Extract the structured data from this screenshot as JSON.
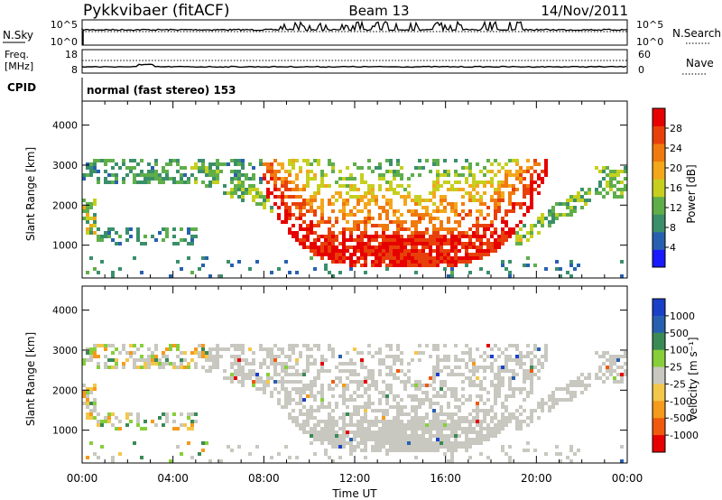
{
  "header": {
    "title": "Pykkvibaer (fitACF)",
    "beam": "Beam 13",
    "date": "14/Nov/2011"
  },
  "status_panels": {
    "nsky": {
      "label": "N.Sky",
      "left_ticks": [
        "10^5",
        "10^0"
      ],
      "right_ticks": [
        "10^5",
        "10^0"
      ],
      "right_label": "N.Search"
    },
    "freq": {
      "label_line1": "Freq.",
      "label_line2": "[MHz]",
      "left_ticks": [
        "18",
        "8"
      ],
      "right_ticks": [
        "60",
        "0"
      ],
      "right_label": "Nave"
    },
    "cpid": {
      "label": "CPID",
      "text": "normal (fast stereo) 153"
    }
  },
  "colors": {
    "power_scale": [
      "#1a1aff",
      "#2860b0",
      "#3a8f6a",
      "#5fae4a",
      "#c6cf1e",
      "#f3a71b",
      "#f07a0e",
      "#e8400a",
      "#e60000"
    ],
    "velocity_scale": [
      "#e60000",
      "#ef5a0e",
      "#f59a1b",
      "#f3c74a",
      "#c8c8c0",
      "#86cf3a",
      "#3a8a55",
      "#2860b0",
      "#1a40c8"
    ]
  },
  "chart_data": [
    {
      "type": "heatmap",
      "name": "power-panel",
      "xlabel": "",
      "ylabel": "Slant Range [km]",
      "x_ticks": [
        "00:00",
        "04:00",
        "08:00",
        "12:00",
        "16:00",
        "20:00",
        "00:00"
      ],
      "y_ticks": [
        "1000",
        "2000",
        "3000",
        "4000"
      ],
      "ylim": [
        180,
        4600
      ],
      "colorbar": {
        "label": "Power [dB]",
        "ticks": [
          "4",
          "8",
          "12",
          "16",
          "20",
          "24",
          "28"
        ],
        "range": [
          0,
          32
        ]
      }
    },
    {
      "type": "heatmap",
      "name": "velocity-panel",
      "xlabel": "Time UT",
      "ylabel": "Slant Range [km]",
      "x_ticks": [
        "00:00",
        "04:00",
        "08:00",
        "12:00",
        "16:00",
        "20:00",
        "00:00"
      ],
      "y_ticks": [
        "1000",
        "2000",
        "3000",
        "4000"
      ],
      "ylim": [
        180,
        4600
      ],
      "colorbar": {
        "label": "Velocity [m s⁻¹]",
        "ticks": [
          "1000",
          "500",
          "100",
          "25",
          "-25",
          "-100",
          "-500",
          "-1000"
        ]
      }
    }
  ]
}
